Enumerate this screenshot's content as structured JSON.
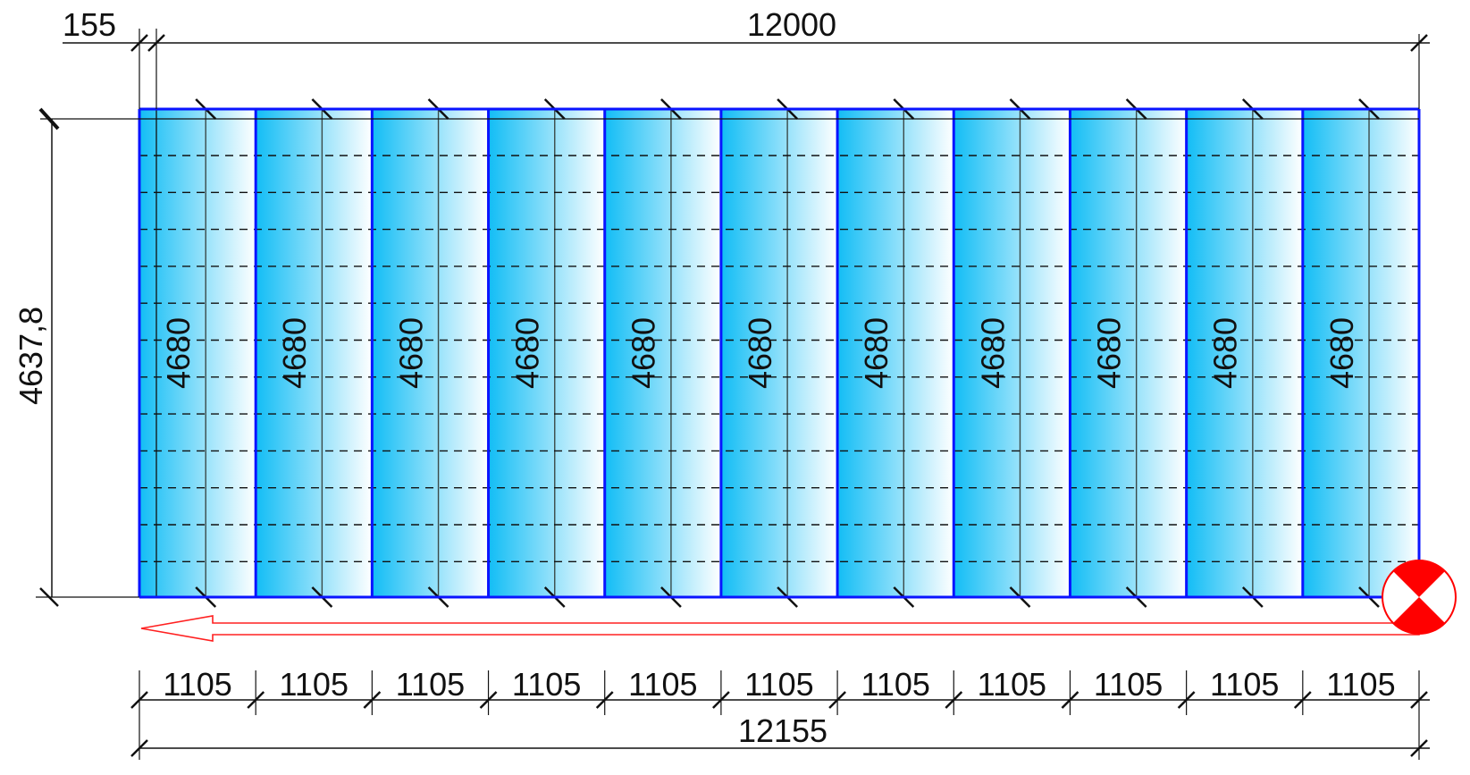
{
  "dimensions": {
    "offset_top": "155",
    "width_top": "12000",
    "height_left": "4637,8",
    "total_bottom": "12155",
    "panel_width_label": "1105",
    "panel_length_label": "4680"
  },
  "panels": [
    {
      "width": "1105",
      "length": "4680"
    },
    {
      "width": "1105",
      "length": "4680"
    },
    {
      "width": "1105",
      "length": "4680"
    },
    {
      "width": "1105",
      "length": "4680"
    },
    {
      "width": "1105",
      "length": "4680"
    },
    {
      "width": "1105",
      "length": "4680"
    },
    {
      "width": "1105",
      "length": "4680"
    },
    {
      "width": "1105",
      "length": "4680"
    },
    {
      "width": "1105",
      "length": "4680"
    },
    {
      "width": "1105",
      "length": "4680"
    },
    {
      "width": "1105",
      "length": "4680"
    }
  ],
  "colors": {
    "panel_dark": "#12bdf5",
    "panel_light": "#ffffff",
    "panel_border": "#0a14ff",
    "marker": "#ff0000",
    "lines": "#111111"
  },
  "icons": {
    "start_marker": "red-checkered-circle-marker",
    "direction_arrow": "left-arrow-outline"
  }
}
